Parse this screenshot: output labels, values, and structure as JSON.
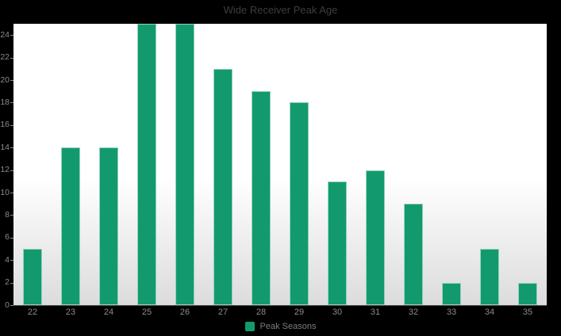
{
  "chart_data": {
    "type": "bar",
    "title": "Wide Receiver Peak Age",
    "categories": [
      "22",
      "23",
      "24",
      "25",
      "26",
      "27",
      "28",
      "29",
      "30",
      "31",
      "32",
      "33",
      "34",
      "35"
    ],
    "series": [
      {
        "name": "Peak Seasons",
        "values": [
          5,
          14,
          14,
          25,
          25,
          21,
          19,
          18,
          11,
          12,
          9,
          2,
          5,
          2
        ]
      }
    ],
    "xlabel": "",
    "ylabel": "",
    "ylim": [
      0,
      25
    ],
    "yticks": [
      0,
      2,
      4,
      6,
      8,
      10,
      12,
      14,
      16,
      18,
      20,
      22,
      24
    ],
    "grid": false,
    "legend": {
      "position": "bottom-center",
      "label": "Peak Seasons"
    },
    "colors": {
      "bar": "#129a6e",
      "bar_border": "rgba(255,255,255,0.55)",
      "outer_bg": "#000000",
      "plot_bg_top": "#ffffff",
      "plot_bg_bottom": "#dcdcdc",
      "title_text": "#3d3d3d",
      "axis_label_text": "#8a8a8a",
      "legend_text": "#7d7d7d",
      "axis_line": "#4d4d4d"
    }
  }
}
